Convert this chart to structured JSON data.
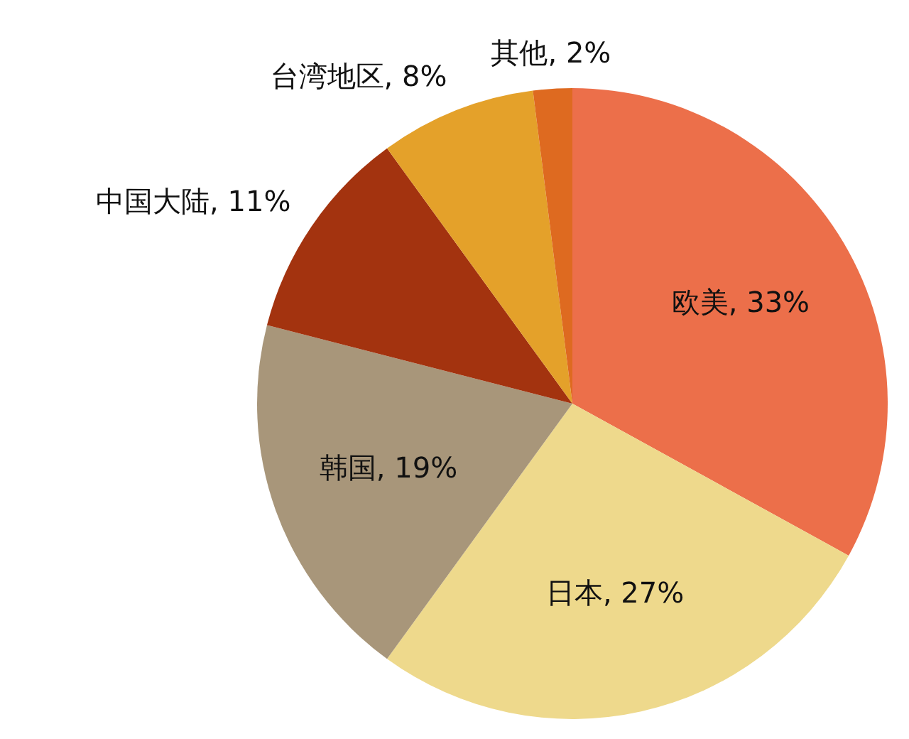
{
  "chart_data": {
    "type": "pie",
    "categories": [
      "欧美",
      "日本",
      "韩国",
      "中国大陆",
      "台湾地区",
      "其他"
    ],
    "values": [
      33,
      27,
      19,
      11,
      8,
      2
    ],
    "value_labels": [
      "33%",
      "27%",
      "19%",
      "11%",
      "8%",
      "2%"
    ],
    "colors": [
      "#ec6f4a",
      "#eed98c",
      "#a8967a",
      "#a3330f",
      "#e4a12a",
      "#de6a20"
    ]
  }
}
